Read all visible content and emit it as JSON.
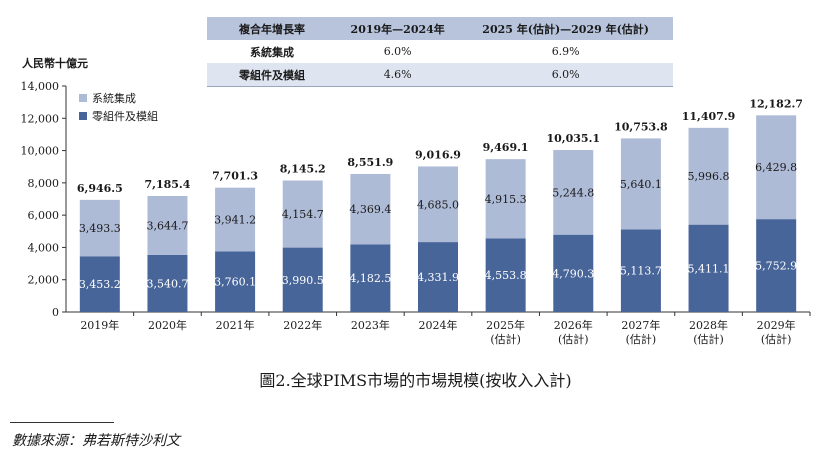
{
  "cagr_table": {
    "header": [
      "複合年增長率",
      "2019年—2024年",
      "2025 年(估計)—2029 年(估計)"
    ],
    "rows": [
      {
        "label": "系統集成",
        "v1": "6.0%",
        "v2": "6.9%"
      },
      {
        "label": "零組件及模組",
        "v1": "4.6%",
        "v2": "6.0%"
      }
    ]
  },
  "caption": "圖2.全球PIMS市場的市場規模(按收入入計)",
  "source": "數據來源：弗若斯特沙利文",
  "colors": {
    "system_integration": "#aebbd7",
    "components": "#48659a",
    "axis": "#333333"
  },
  "chart_data": {
    "type": "bar",
    "stacked": true,
    "ylabel": "人民幣十億元",
    "ylim": [
      0,
      14000
    ],
    "yticks": [
      "0",
      "2,000",
      "4,000",
      "6,000",
      "8,000",
      "10,000",
      "12,000",
      "14,000"
    ],
    "ytick_values": [
      0,
      2000,
      4000,
      6000,
      8000,
      10000,
      12000,
      14000
    ],
    "grid": false,
    "legend_position": "top-left",
    "categories": [
      [
        "2019年"
      ],
      [
        "2020年"
      ],
      [
        "2021年"
      ],
      [
        "2022年"
      ],
      [
        "2023年"
      ],
      [
        "2024年"
      ],
      [
        "2025年",
        "(估計)"
      ],
      [
        "2026年",
        "(估計)"
      ],
      [
        "2027年",
        "(估計)"
      ],
      [
        "2028年",
        "(估計)"
      ],
      [
        "2029年",
        "(估計)"
      ]
    ],
    "series": [
      {
        "name": "零組件及模組",
        "values": [
          3453.2,
          3540.7,
          3760.1,
          3990.5,
          4182.5,
          4331.9,
          4553.8,
          4790.3,
          5113.7,
          5411.1,
          5752.9
        ],
        "labels": [
          "3,453.2",
          "3,540.7",
          "3,760.1",
          "3,990.5",
          "4,182.5",
          "4,331.9",
          "4,553.8",
          "4,790.3",
          "5,113.7",
          "5,411.1",
          "5,752.9"
        ]
      },
      {
        "name": "系統集成",
        "values": [
          3493.3,
          3644.7,
          3941.2,
          4154.7,
          4369.4,
          4685.0,
          4915.3,
          5244.8,
          5640.1,
          5996.8,
          6429.8
        ],
        "labels": [
          "3,493.3",
          "3,644.7",
          "3,941.2",
          "4,154.7",
          "4,369.4",
          "4,685.0",
          "4,915.3",
          "5,244.8",
          "5,640.1",
          "5,996.8",
          "6,429.8"
        ]
      }
    ],
    "totals": [
      6946.5,
      7185.4,
      7701.3,
      8145.2,
      8551.9,
      9016.9,
      9469.1,
      10035.1,
      10753.8,
      11407.9,
      12182.7
    ],
    "total_labels": [
      "6,946.5",
      "7,185.4",
      "7,701.3",
      "8,145.2",
      "8,551.9",
      "9,016.9",
      "9,469.1",
      "10,035.1",
      "10,753.8",
      "11,407.9",
      "12,182.7"
    ]
  }
}
